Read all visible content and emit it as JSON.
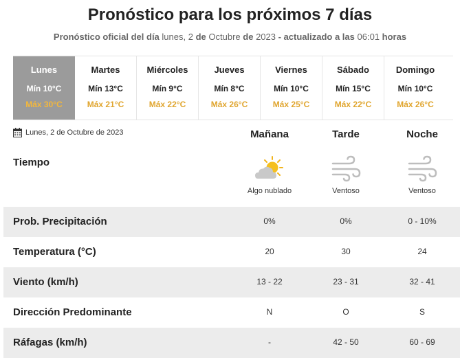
{
  "header": {
    "title": "Pronóstico para los próximos 7 días",
    "subtitle_prefix": "Pronóstico oficial del día",
    "day_word": "lunes, 2",
    "connector_de1": "de",
    "month": "Octubre",
    "connector_de2": "de",
    "year": "2023",
    "updated_prefix": "- actualizado a las",
    "updated_time": "06:01",
    "updated_suffix": "horas"
  },
  "days": [
    {
      "name": "Lunes",
      "min": "Mín 10°C",
      "max": "Máx 30°C",
      "selected": true
    },
    {
      "name": "Martes",
      "min": "Mín 13°C",
      "max": "Máx 21°C",
      "selected": false
    },
    {
      "name": "Miércoles",
      "min": "Mín 9°C",
      "max": "Máx 22°C",
      "selected": false
    },
    {
      "name": "Jueves",
      "min": "Mín 8°C",
      "max": "Máx 26°C",
      "selected": false
    },
    {
      "name": "Viernes",
      "min": "Mín 10°C",
      "max": "Máx 25°C",
      "selected": false
    },
    {
      "name": "Sábado",
      "min": "Mín 15°C",
      "max": "Máx 22°C",
      "selected": false
    },
    {
      "name": "Domingo",
      "min": "Mín 10°C",
      "max": "Máx 26°C",
      "selected": false
    }
  ],
  "detail": {
    "date_label": "Lunes, 2 de Octubre de 2023",
    "periods": [
      "Mañana",
      "Tarde",
      "Noche"
    ],
    "tiempo_label": "Tiempo",
    "weather": [
      {
        "text": "Algo nublado",
        "icon": "partly-cloudy-icon"
      },
      {
        "text": "Ventoso",
        "icon": "wind-icon"
      },
      {
        "text": "Ventoso",
        "icon": "wind-icon"
      }
    ],
    "rows": [
      {
        "label": "Prob. Precipitación",
        "values": [
          "0%",
          "0%",
          "0 - 10%"
        ]
      },
      {
        "label": "Temperatura (°C)",
        "values": [
          "20",
          "30",
          "24"
        ]
      },
      {
        "label": "Viento (km/h)",
        "values": [
          "13 - 22",
          "23 - 31",
          "32 - 41"
        ]
      },
      {
        "label": "Dirección Predominante",
        "values": [
          "N",
          "O",
          "S"
        ]
      },
      {
        "label": "Ráfagas (km/h)",
        "values": [
          "-",
          "42 - 50",
          "60 - 69"
        ]
      }
    ]
  },
  "colors": {
    "selected_bg": "#9b9b9b",
    "max_temp": "#e0a52e",
    "row_shade": "#ececec"
  }
}
